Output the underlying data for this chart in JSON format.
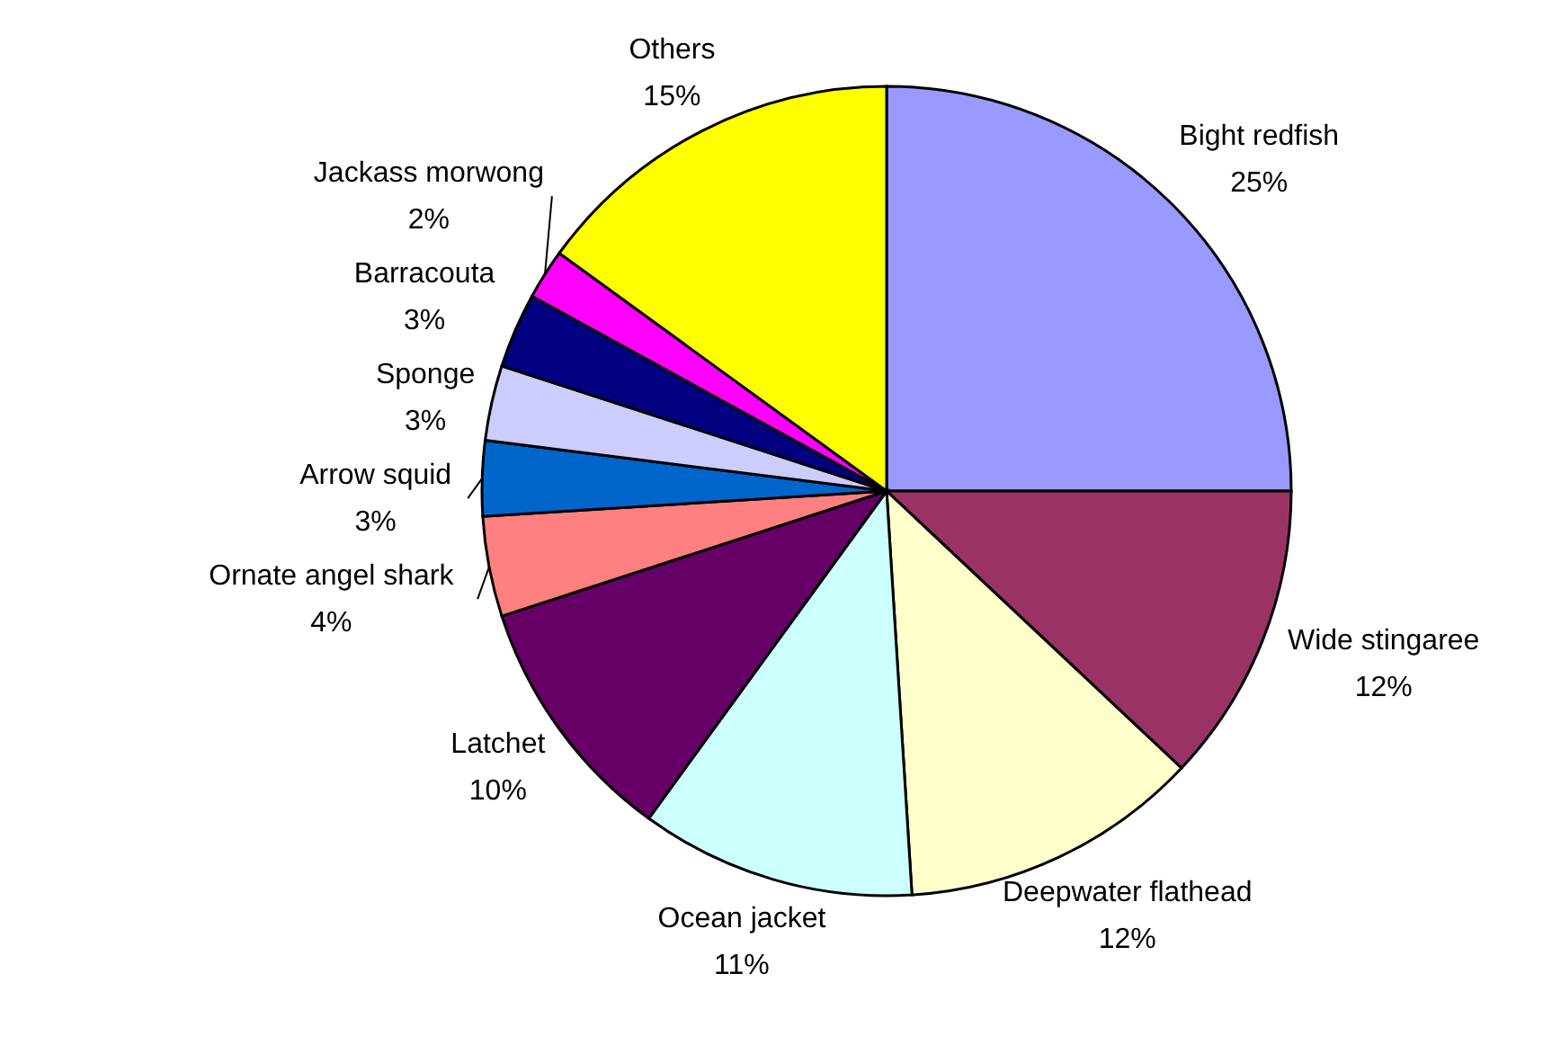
{
  "chart_data": {
    "type": "pie",
    "categories": [
      "Bight redfish",
      "Wide stingaree",
      "Deepwater flathead",
      "Ocean jacket",
      "Latchet",
      "Ornate angel shark",
      "Arrow squid",
      "Sponge",
      "Barracouta",
      "Jackass morwong",
      "Others"
    ],
    "values": [
      25,
      12,
      12,
      11,
      10,
      4,
      3,
      3,
      3,
      2,
      15
    ],
    "colors": [
      "#9999ff",
      "#993366",
      "#ffffcc",
      "#ccffff",
      "#660066",
      "#ff8080",
      "#0066cc",
      "#ccccff",
      "#000080",
      "#ff00ff",
      "#ffff00"
    ],
    "value_labels": [
      "25%",
      "12%",
      "12%",
      "11%",
      "10%",
      "4%",
      "3%",
      "3%",
      "3%",
      "2%",
      "15%"
    ]
  }
}
